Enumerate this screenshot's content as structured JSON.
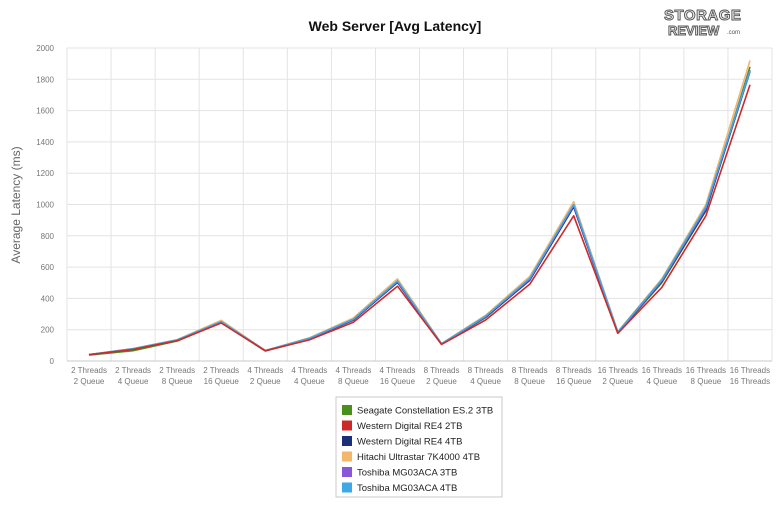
{
  "logo": {
    "line1": "STORAGE",
    "line2": "REVIEW",
    "suffix": ".com"
  },
  "chart_data": {
    "type": "line",
    "title": "Web Server [Avg Latency]",
    "ylabel": "Average Latency (ms)",
    "xlabel": "",
    "ylim": [
      0,
      2000
    ],
    "yticks": [
      0,
      200,
      400,
      600,
      800,
      1000,
      1200,
      1400,
      1600,
      1800,
      2000
    ],
    "grid": "vertical and horizontal",
    "legend_position": "bottom",
    "categories": [
      [
        "2 Threads",
        "2 Queue"
      ],
      [
        "2 Threads",
        "4 Queue"
      ],
      [
        "2 Threads",
        "8 Queue"
      ],
      [
        "2 Threads",
        "16 Queue"
      ],
      [
        "4 Threads",
        "2 Queue"
      ],
      [
        "4 Threads",
        "4 Queue"
      ],
      [
        "4 Threads",
        "8 Queue"
      ],
      [
        "4 Threads",
        "16 Queue"
      ],
      [
        "8 Threads",
        "2 Queue"
      ],
      [
        "8 Threads",
        "4 Queue"
      ],
      [
        "8 Threads",
        "8 Queue"
      ],
      [
        "8 Threads",
        "16 Queue"
      ],
      [
        "16 Threads",
        "2 Queue"
      ],
      [
        "16 Threads",
        "4 Queue"
      ],
      [
        "16 Threads",
        "8 Queue"
      ],
      [
        "16 Threads",
        "16 Threads"
      ]
    ],
    "series": [
      {
        "name": "Seagate Constellation ES.2 3TB",
        "color": "#4a8f1c",
        "values": [
          38,
          66,
          128,
          246,
          64,
          140,
          262,
          505,
          108,
          278,
          518,
          988,
          180,
          500,
          960,
          1880
        ]
      },
      {
        "name": "Western Digital RE4 2TB",
        "color": "#cc2a2a",
        "values": [
          40,
          74,
          130,
          243,
          65,
          135,
          248,
          478,
          106,
          262,
          490,
          928,
          177,
          470,
          928,
          1765
        ]
      },
      {
        "name": "Western Digital RE4 4TB",
        "color": "#1a2e7a",
        "values": [
          40,
          76,
          132,
          248,
          66,
          142,
          262,
          502,
          108,
          280,
          515,
          985,
          180,
          508,
          965,
          1850
        ]
      },
      {
        "name": "Hitachi Ultrastar 7K4000 4TB",
        "color": "#f2b76a",
        "values": [
          41,
          80,
          137,
          260,
          67,
          148,
          275,
          525,
          112,
          292,
          540,
          1018,
          188,
          525,
          1000,
          1920
        ]
      },
      {
        "name": "Toshiba MG03ACA 3TB",
        "color": "#8a56d8",
        "values": [
          40,
          77,
          133,
          250,
          66,
          143,
          265,
          508,
          109,
          283,
          522,
          995,
          183,
          512,
          975,
          1860
        ]
      },
      {
        "name": "Toshiba MG03ACA 4TB",
        "color": "#3ea8e8",
        "values": [
          40,
          78,
          135,
          252,
          66,
          145,
          268,
          512,
          110,
          286,
          528,
          1000,
          185,
          518,
          985,
          1855
        ]
      }
    ]
  }
}
